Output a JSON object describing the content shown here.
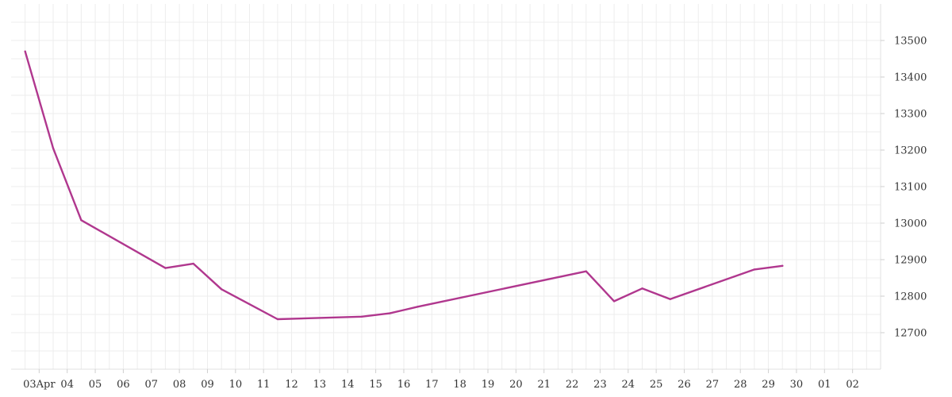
{
  "chart_data": {
    "type": "line",
    "x_axis": {
      "type": "date",
      "tick_labels": [
        "03Apr",
        "04",
        "05",
        "06",
        "07",
        "08",
        "09",
        "10",
        "11",
        "12",
        "13",
        "14",
        "15",
        "16",
        "17",
        "18",
        "19",
        "20",
        "21",
        "22",
        "23",
        "24",
        "25",
        "26",
        "27",
        "28",
        "29",
        "30",
        "01",
        "02"
      ],
      "tick_dates": [
        "04-03",
        "04-04",
        "04-05",
        "04-06",
        "04-07",
        "04-08",
        "04-09",
        "04-10",
        "04-11",
        "04-12",
        "04-13",
        "04-14",
        "04-15",
        "04-16",
        "04-17",
        "04-18",
        "04-19",
        "04-20",
        "04-21",
        "04-22",
        "04-23",
        "04-24",
        "04-25",
        "04-26",
        "04-27",
        "04-28",
        "04-29",
        "04-30",
        "05-01",
        "05-02"
      ],
      "range": [
        "04-02",
        "05-03"
      ]
    },
    "y_axis": {
      "position": "right",
      "ticks": [
        12700,
        12800,
        12900,
        13000,
        13100,
        13200,
        13300,
        13400,
        13500
      ],
      "range": [
        12600,
        13600
      ]
    },
    "grid": true,
    "legend": "none",
    "series": [
      {
        "color": "#b0378e",
        "points": [
          {
            "x": "04-02.5",
            "y": 13470
          },
          {
            "x": "04-03.5",
            "y": 13205
          },
          {
            "x": "04-04.5",
            "y": 13008
          },
          {
            "x": "04-07.5",
            "y": 12877
          },
          {
            "x": "04-08.5",
            "y": 12889
          },
          {
            "x": "04-09.5",
            "y": 12819
          },
          {
            "x": "04-11.5",
            "y": 12737
          },
          {
            "x": "04-14.5",
            "y": 12744
          },
          {
            "x": "04-15.5",
            "y": 12753
          },
          {
            "x": "04-16.5",
            "y": 12771
          },
          {
            "x": "04-22.5",
            "y": 12868
          },
          {
            "x": "04-23.5",
            "y": 12786
          },
          {
            "x": "04-24.5",
            "y": 12821
          },
          {
            "x": "04-25.5",
            "y": 12792
          },
          {
            "x": "04-28.5",
            "y": 12873
          },
          {
            "x": "04-29.5",
            "y": 12883
          }
        ]
      }
    ]
  }
}
